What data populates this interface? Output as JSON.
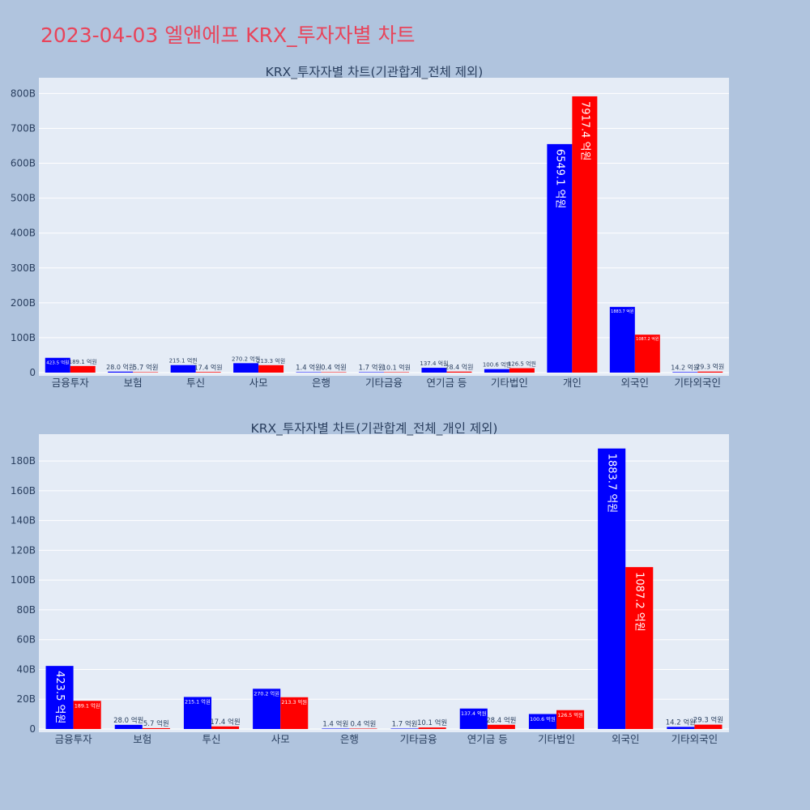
{
  "page_title": "2023-04-03 엘앤에프 KRX_투자자별 차트",
  "colors": {
    "series_a": "#0000ff",
    "series_b": "#ff0000",
    "plot_bg": "#e5ecf6",
    "page_bg": "#b0c4de",
    "title": "#e8445a"
  },
  "chart_data": [
    {
      "type": "bar",
      "title": "KRX_투자자별 차트(기관합계_전체 제외)",
      "categories": [
        "금융투자",
        "보험",
        "투신",
        "사모",
        "은행",
        "기타금융",
        "연기금 등",
        "기타법인",
        "개인",
        "외국인",
        "기타외국인"
      ],
      "series": [
        {
          "values": [
            423.5,
            28.0,
            215.1,
            270.2,
            1.4,
            1.7,
            137.4,
            100.6,
            6549.1,
            1883.7,
            14.2
          ]
        },
        {
          "values": [
            189.1,
            5.7,
            17.4,
            213.3,
            0.4,
            10.1,
            28.4,
            126.5,
            7917.4,
            1087.2,
            29.3
          ]
        }
      ],
      "data_labels": [
        [
          "423.5 억원",
          "28.0 억원",
          "215.1 억원",
          "270.2 억원",
          "1.4 억원",
          "1.7 억원",
          "137.4 억원",
          "100.6 억원",
          "6549.1 억원",
          "1883.7 억원",
          "14.2 억원"
        ],
        [
          "189.1 억원",
          "5.7 억원",
          "17.4 억원",
          "213.3 억원",
          "0.4 억원",
          "10.1 억원",
          "28.4 억원",
          "126.5 억원",
          "7917.4 억원",
          "1087.2 억원",
          "29.3 억원"
        ]
      ],
      "yticks": [
        "0",
        "100B",
        "200B",
        "300B",
        "400B",
        "500B",
        "600B",
        "700B",
        "800B"
      ],
      "ytick_values": [
        0,
        1000,
        2000,
        3000,
        4000,
        5000,
        6000,
        7000,
        8000
      ],
      "ylim": [
        0,
        8450
      ],
      "grid": true
    },
    {
      "type": "bar",
      "title": "KRX_투자자별 차트(기관합계_전체_개인 제외)",
      "categories": [
        "금융투자",
        "보험",
        "투신",
        "사모",
        "은행",
        "기타금융",
        "연기금 등",
        "기타법인",
        "외국인",
        "기타외국인"
      ],
      "series": [
        {
          "values": [
            423.5,
            28.0,
            215.1,
            270.2,
            1.4,
            1.7,
            137.4,
            100.6,
            1883.7,
            14.2
          ]
        },
        {
          "values": [
            189.1,
            5.7,
            17.4,
            213.3,
            0.4,
            10.1,
            28.4,
            126.5,
            1087.2,
            29.3
          ]
        }
      ],
      "data_labels": [
        [
          "423.5 억원",
          "28.0 억원",
          "215.1 억원",
          "270.2 억원",
          "1.4 억원",
          "1.7 억원",
          "137.4 억원",
          "100.6 억원",
          "1883.7 억원",
          "14.2 억원"
        ],
        [
          "189.1 억원",
          "5.7 억원",
          "17.4 억원",
          "213.3 억원",
          "0.4 억원",
          "10.1 억원",
          "28.4 억원",
          "126.5 억원",
          "1087.2 억원",
          "29.3 억원"
        ]
      ],
      "yticks": [
        "0",
        "20B",
        "40B",
        "60B",
        "80B",
        "100B",
        "120B",
        "140B",
        "160B",
        "180B"
      ],
      "ytick_values": [
        0,
        200,
        400,
        600,
        800,
        1000,
        1200,
        1400,
        1600,
        1800
      ],
      "ylim": [
        0,
        1980
      ],
      "grid": true
    }
  ]
}
